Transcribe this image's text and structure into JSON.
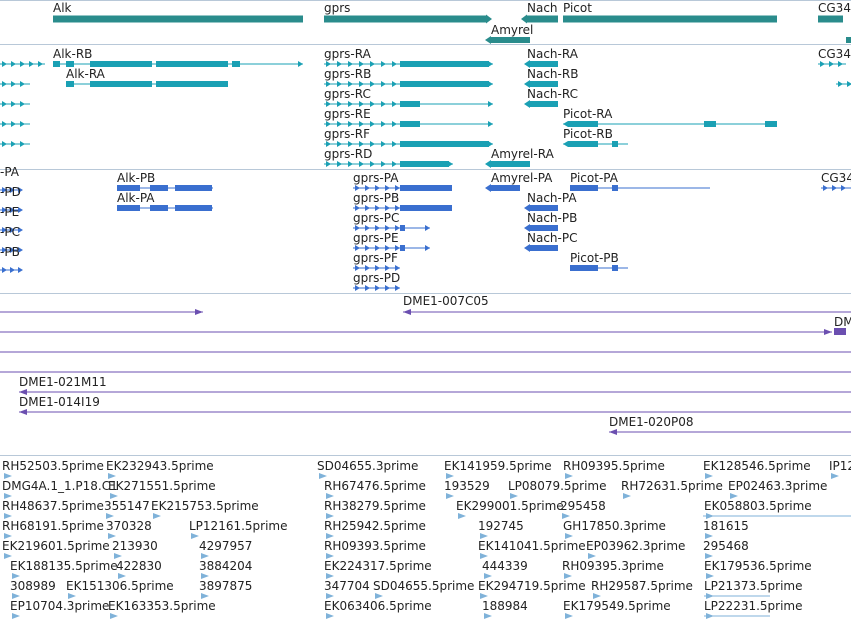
{
  "colors": {
    "gene": "#2a8c8c",
    "transcript": "#1aa0b4",
    "protein": "#3a6fcf",
    "clone": "#6b4fb0",
    "est": "#7fb2d9",
    "divider": "#b8c8d8",
    "text": "#222222"
  },
  "genes": [
    {
      "label": "Alk"
    },
    {
      "label": "gprs"
    },
    {
      "label": "Nach"
    },
    {
      "label": "Picot"
    },
    {
      "label": "CG34"
    },
    {
      "label": "Amyrel"
    }
  ],
  "transcripts": [
    {
      "label": "Alk-RB"
    },
    {
      "label": "Alk-RA"
    },
    {
      "label": "gprs-RA"
    },
    {
      "label": "gprs-RB"
    },
    {
      "label": "gprs-RC"
    },
    {
      "label": "gprs-RE"
    },
    {
      "label": "gprs-RF"
    },
    {
      "label": "gprs-RD"
    },
    {
      "label": "Nach-RA"
    },
    {
      "label": "Nach-RB"
    },
    {
      "label": "Nach-RC"
    },
    {
      "label": "Picot-RA"
    },
    {
      "label": "Picot-RB"
    },
    {
      "label": "Amyrel-RA"
    },
    {
      "label": "CG34"
    }
  ],
  "proteins": [
    {
      "label": "-PA"
    },
    {
      "label": "-PD"
    },
    {
      "label": "-PE"
    },
    {
      "label": "-PC"
    },
    {
      "label": "-PB"
    },
    {
      "label": "Alk-PB"
    },
    {
      "label": "Alk-PA"
    },
    {
      "label": "gprs-PA"
    },
    {
      "label": "gprs-PB"
    },
    {
      "label": "gprs-PC"
    },
    {
      "label": "gprs-PE"
    },
    {
      "label": "gprs-PF"
    },
    {
      "label": "gprs-PD"
    },
    {
      "label": "Amyrel-PA"
    },
    {
      "label": "Nach-PA"
    },
    {
      "label": "Nach-PB"
    },
    {
      "label": "Nach-PC"
    },
    {
      "label": "Picot-PA"
    },
    {
      "label": "Picot-PB"
    },
    {
      "label": "CG34"
    }
  ],
  "clones": [
    {
      "label": "DME1-007C05"
    },
    {
      "label": "DM"
    },
    {
      "label": "DME1-021M11"
    },
    {
      "label": "DME1-014I19"
    },
    {
      "label": "DME1-020P08"
    }
  ],
  "ests": [
    {
      "label": "RH52503.5prime"
    },
    {
      "label": "EK232943.5prime"
    },
    {
      "label": "SD04655.3prime"
    },
    {
      "label": "EK141959.5prime"
    },
    {
      "label": "RH09395.5prime"
    },
    {
      "label": "EK128546.5prime"
    },
    {
      "label": "IP12"
    },
    {
      "label": "DMG4A.1_1.P18.C1"
    },
    {
      "label": "EK271551.5prime"
    },
    {
      "label": "RH67476.5prime"
    },
    {
      "label": "193529"
    },
    {
      "label": "LP08079.5prime"
    },
    {
      "label": "RH72631.5prime"
    },
    {
      "label": "EP02463.3prime"
    },
    {
      "label": "RH48637.5prime"
    },
    {
      "label": "355147"
    },
    {
      "label": "EK215753.5prime"
    },
    {
      "label": "RH38279.5prime"
    },
    {
      "label": "EK299001.5prime"
    },
    {
      "label": "295458"
    },
    {
      "label": "EK058803.5prime"
    },
    {
      "label": "RH68191.5prime"
    },
    {
      "label": "370328"
    },
    {
      "label": "LP12161.5prime"
    },
    {
      "label": "RH25942.5prime"
    },
    {
      "label": "192745"
    },
    {
      "label": "GH17850.3prime"
    },
    {
      "label": "181615"
    },
    {
      "label": "EK219601.5prime"
    },
    {
      "label": "213930"
    },
    {
      "label": "4297957"
    },
    {
      "label": "RH09393.5prime"
    },
    {
      "label": "EK141041.5prime"
    },
    {
      "label": "EP03962.3prime"
    },
    {
      "label": "295468"
    },
    {
      "label": "EK188135.5prime"
    },
    {
      "label": "422830"
    },
    {
      "label": "3884204"
    },
    {
      "label": "EK224317.5prime"
    },
    {
      "label": "444339"
    },
    {
      "label": "RH09395.3prime"
    },
    {
      "label": "EK179536.5prime"
    },
    {
      "label": "308989"
    },
    {
      "label": "EK151306.5prime"
    },
    {
      "label": "3897875"
    },
    {
      "label": "347704"
    },
    {
      "label": "SD04655.5prime"
    },
    {
      "label": "EK294719.5prime"
    },
    {
      "label": "RH29587.5prime"
    },
    {
      "label": "LP21373.5prime"
    },
    {
      "label": "EP10704.3prime"
    },
    {
      "label": "EK163353.5prime"
    },
    {
      "label": "EK063406.5prime"
    },
    {
      "label": "188984"
    },
    {
      "label": "EK179549.5prime"
    },
    {
      "label": "LP22231.5prime"
    }
  ]
}
